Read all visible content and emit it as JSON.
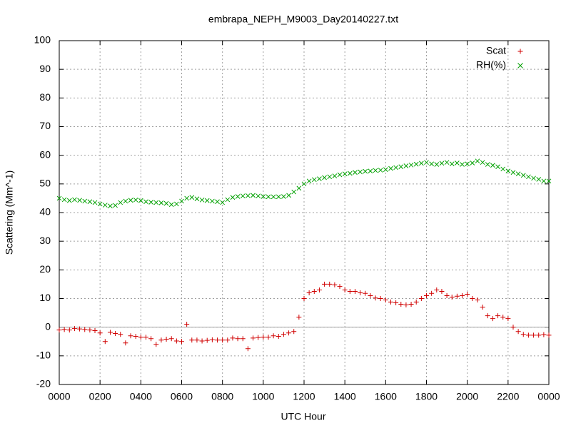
{
  "chart_data": {
    "type": "scatter",
    "title": "embrapa_NEPH_M9003_Day20140227.txt",
    "x_label": "UTC Hour",
    "y_label": "Scattering (Mm^-1)",
    "xlim": [
      0,
      24
    ],
    "xticks": [
      {
        "value": 0,
        "label": "0000"
      },
      {
        "value": 2,
        "label": "0200"
      },
      {
        "value": 4,
        "label": "0400"
      },
      {
        "value": 6,
        "label": "0600"
      },
      {
        "value": 8,
        "label": "0800"
      },
      {
        "value": 10,
        "label": "1000"
      },
      {
        "value": 12,
        "label": "1200"
      },
      {
        "value": 14,
        "label": "1400"
      },
      {
        "value": 16,
        "label": "1600"
      },
      {
        "value": 18,
        "label": "1800"
      },
      {
        "value": 20,
        "label": "2000"
      },
      {
        "value": 22,
        "label": "2200"
      },
      {
        "value": 24,
        "label": "0000"
      }
    ],
    "ylim": [
      -20,
      100
    ],
    "yticks": [
      -20,
      -10,
      0,
      10,
      20,
      30,
      40,
      50,
      60,
      70,
      80,
      90,
      100
    ],
    "grid": true,
    "zero_axis": true,
    "legend_position": "top-right",
    "x": [
      0,
      0.25,
      0.5,
      0.75,
      1,
      1.25,
      1.5,
      1.75,
      2,
      2.25,
      2.5,
      2.75,
      3,
      3.25,
      3.5,
      3.75,
      4,
      4.25,
      4.5,
      4.75,
      5,
      5.25,
      5.5,
      5.75,
      6,
      6.25,
      6.5,
      6.75,
      7,
      7.25,
      7.5,
      7.75,
      8,
      8.25,
      8.5,
      8.75,
      9,
      9.25,
      9.5,
      9.75,
      10,
      10.25,
      10.5,
      10.75,
      11,
      11.25,
      11.5,
      11.75,
      12,
      12.25,
      12.5,
      12.75,
      13,
      13.25,
      13.5,
      13.75,
      14,
      14.25,
      14.5,
      14.75,
      15,
      15.25,
      15.5,
      15.75,
      16,
      16.25,
      16.5,
      16.75,
      17,
      17.25,
      17.5,
      17.75,
      18,
      18.25,
      18.5,
      18.75,
      19,
      19.25,
      19.5,
      19.75,
      20,
      20.25,
      20.5,
      20.75,
      21,
      21.25,
      21.5,
      21.75,
      22,
      22.25,
      22.5,
      22.75,
      23,
      23.25,
      23.5,
      23.75,
      24
    ],
    "series": [
      {
        "name": "Scat",
        "color": "#d00000",
        "marker": "plus",
        "values": [
          -1,
          -0.8,
          -1,
          -0.5,
          -0.6,
          -0.8,
          -1,
          -1.2,
          -2,
          -5,
          -1.8,
          -2.2,
          -2.5,
          -5.5,
          -3,
          -3.2,
          -3.5,
          -3.5,
          -4,
          -6,
          -4.5,
          -4.2,
          -4,
          -4.8,
          -5,
          1,
          -4.5,
          -4.5,
          -4.8,
          -4.6,
          -4.4,
          -4.5,
          -4.5,
          -4.5,
          -3.8,
          -4,
          -4,
          -7.5,
          -3.8,
          -3.6,
          -3.5,
          -3.5,
          -3,
          -3.2,
          -2.5,
          -2,
          -1.5,
          3.5,
          10,
          12,
          12.5,
          13,
          15,
          15,
          14.8,
          14.2,
          13,
          12.5,
          12.5,
          12,
          11.8,
          11,
          10.2,
          10,
          9.5,
          8.8,
          8.5,
          8,
          7.8,
          8,
          8.8,
          10,
          11,
          11.8,
          13,
          12.5,
          11,
          10.5,
          10.8,
          11,
          11.5,
          10,
          9.5,
          7,
          4,
          3,
          4,
          3.5,
          3,
          0,
          -1.5,
          -2.5,
          -2.8,
          -2.8,
          -2.8,
          -2.6,
          -2.8
        ]
      },
      {
        "name": "RH(%)",
        "color": "#00a000",
        "marker": "cross",
        "values": [
          45,
          44.5,
          44.2,
          44.5,
          44.3,
          44,
          43.8,
          43.5,
          43,
          42.6,
          42.3,
          42.5,
          43.5,
          44,
          44.3,
          44.4,
          44.2,
          43.8,
          43.6,
          43.5,
          43.4,
          43.2,
          42.8,
          43,
          44,
          45,
          45.3,
          44.8,
          44.4,
          44.2,
          44,
          43.8,
          43.5,
          44.5,
          45.3,
          45.6,
          45.8,
          45.9,
          46,
          45.8,
          45.6,
          45.5,
          45.5,
          45.5,
          45.6,
          46,
          47.2,
          48.5,
          50,
          51,
          51.5,
          51.8,
          52.2,
          52.5,
          52.8,
          53.2,
          53.5,
          53.7,
          54,
          54.2,
          54.4,
          54.5,
          54.7,
          54.8,
          55,
          55.4,
          55.7,
          56,
          56.3,
          56.6,
          56.9,
          57.2,
          57.5,
          57,
          56.8,
          57.2,
          57.5,
          57,
          57.3,
          56.8,
          57,
          57.3,
          58,
          57.5,
          56.8,
          56.5,
          56,
          55.2,
          54.5,
          54,
          53.5,
          53,
          52.5,
          52,
          51.6,
          51,
          51
        ]
      }
    ]
  }
}
